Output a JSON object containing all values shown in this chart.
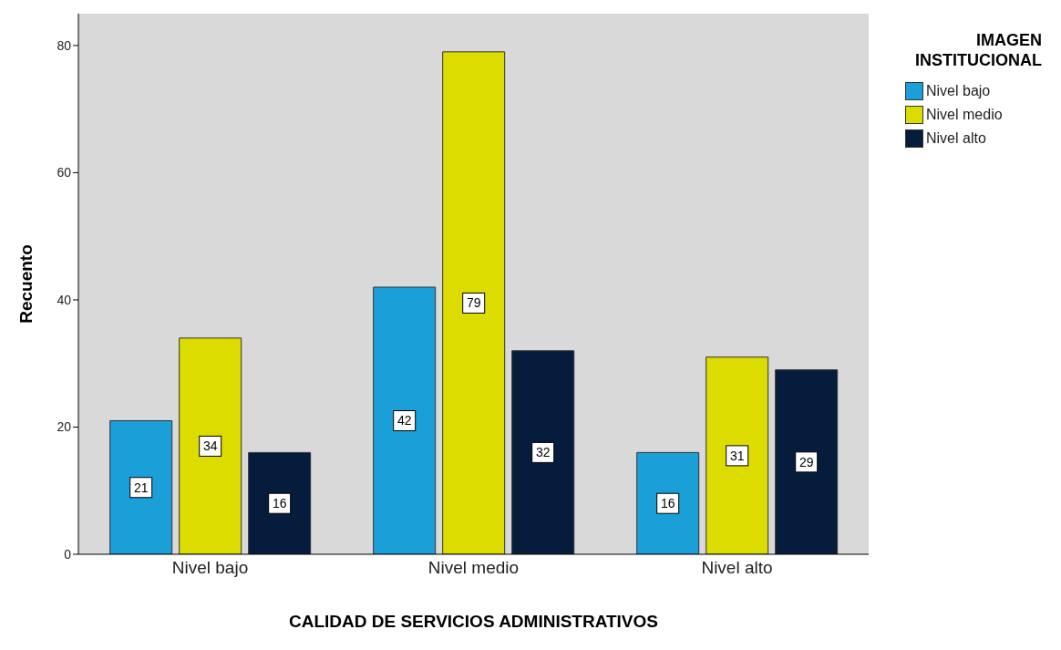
{
  "chart_data": {
    "type": "bar",
    "xlabel": "CALIDAD DE SERVICIOS ADMINISTRATIVOS",
    "ylabel": "Recuento",
    "legend_title": "IMAGEN INSTITUCIONAL",
    "categories": [
      "Nivel bajo",
      "Nivel medio",
      "Nivel alto"
    ],
    "series": [
      {
        "name": "Nivel bajo",
        "color": "#1a9fd9",
        "values": [
          21,
          42,
          16
        ]
      },
      {
        "name": "Nivel medio",
        "color": "#dcdc00",
        "values": [
          34,
          79,
          31
        ]
      },
      {
        "name": "Nivel alto",
        "color": "#061c3c",
        "values": [
          16,
          32,
          29
        ]
      }
    ],
    "ylim": [
      0,
      85
    ],
    "yticks": [
      0,
      20,
      40,
      60,
      80
    ],
    "grid": false,
    "legend": "top right",
    "data_labels": true
  }
}
